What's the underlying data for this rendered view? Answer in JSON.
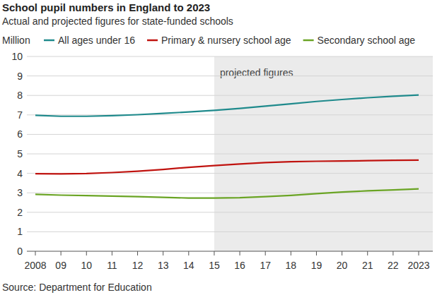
{
  "chart_data": {
    "type": "line",
    "title": "School pupil numbers in England to 2023",
    "subtitle": "Actual and projected figures for state-funded schools",
    "y_label": "Million",
    "source": "Source: Department for Education",
    "x": [
      2008,
      2009,
      2010,
      2011,
      2012,
      2013,
      2014,
      2015,
      2016,
      2017,
      2018,
      2019,
      2020,
      2021,
      2022,
      2023
    ],
    "series": [
      {
        "name": "All ages under 16",
        "color": "#1f8a8c",
        "values": [
          6.98,
          6.93,
          6.93,
          6.96,
          7.01,
          7.08,
          7.15,
          7.23,
          7.33,
          7.45,
          7.57,
          7.69,
          7.79,
          7.88,
          7.96,
          8.02
        ]
      },
      {
        "name": "Primary & nursery school age",
        "color": "#c0130f",
        "values": [
          3.98,
          3.97,
          3.99,
          4.04,
          4.11,
          4.2,
          4.31,
          4.4,
          4.48,
          4.55,
          4.6,
          4.62,
          4.63,
          4.65,
          4.67,
          4.68
        ]
      },
      {
        "name": "Secondary school age",
        "color": "#6aa424",
        "values": [
          2.92,
          2.88,
          2.86,
          2.83,
          2.8,
          2.77,
          2.73,
          2.73,
          2.75,
          2.8,
          2.87,
          2.96,
          3.04,
          3.1,
          3.15,
          3.2
        ]
      }
    ],
    "annotations": [
      {
        "text": "projected figures",
        "x": 2015
      }
    ],
    "xlim": [
      2008,
      2023
    ],
    "xticks": [
      2008,
      {
        "value": 2009,
        "label": "09"
      },
      {
        "value": 2010,
        "label": "10"
      },
      {
        "value": 2011,
        "label": "11"
      },
      {
        "value": 2012,
        "label": "12"
      },
      {
        "value": 2013,
        "label": "13"
      },
      {
        "value": 2014,
        "label": "14"
      },
      {
        "value": 2015,
        "label": "15"
      },
      {
        "value": 2016,
        "label": "16"
      },
      {
        "value": 2017,
        "label": "17"
      },
      {
        "value": 2018,
        "label": "18"
      },
      {
        "value": 2019,
        "label": "19"
      },
      {
        "value": 2020,
        "label": "20"
      },
      {
        "value": 2021,
        "label": "21"
      },
      {
        "value": 2022,
        "label": "22"
      },
      2023
    ],
    "ylim": [
      0,
      10
    ],
    "yticks": [
      0,
      1,
      2,
      3,
      4,
      5,
      6,
      7,
      8,
      9,
      10
    ],
    "grid": true,
    "legend": "top"
  }
}
